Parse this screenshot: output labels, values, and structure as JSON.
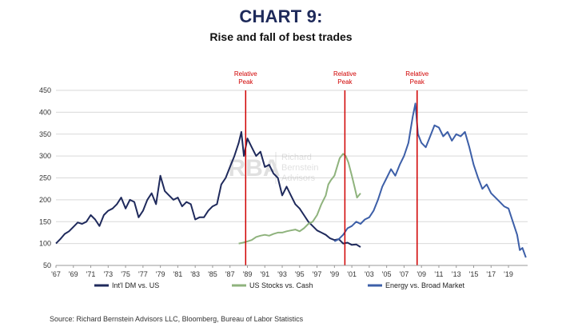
{
  "header": {
    "title": "CHART 9:",
    "subtitle": "Rise and fall of best trades"
  },
  "source": "Source: Richard Bernstein Advisors LLC, Bloomberg, Bureau of Labor Statistics",
  "watermark": {
    "line1": "Richard",
    "line2": "Bernstein",
    "line3": "Advisors",
    "logo": "RBA"
  },
  "chart_data": {
    "type": "line",
    "title": "Rise and fall of best trades",
    "xlabel": "",
    "ylabel": "",
    "xlim": [
      1967,
      2021.2
    ],
    "ylim": [
      50,
      450
    ],
    "yticks": [
      50,
      100,
      150,
      200,
      250,
      300,
      350,
      400,
      450
    ],
    "xtick_labels": [
      "'67",
      "'69",
      "'71",
      "'73",
      "'75",
      "'77",
      "'79",
      "'81",
      "'83",
      "'85",
      "'87",
      "'89",
      "'91",
      "'93",
      "'95",
      "'97",
      "'99",
      "'01",
      "'03",
      "'05",
      "'07",
      "'09",
      "'11",
      "'13",
      "'15",
      "'17",
      "'19"
    ],
    "grid": "horizontal",
    "legend_position": "bottom",
    "colors": {
      "intl": "#1f2a5c",
      "stocks": "#8fb37d",
      "energy": "#3d5fa8",
      "peak": "#d00000",
      "grid": "#d9d9d9"
    },
    "series": [
      {
        "name": "Int'l DM vs. US",
        "color": "#1f2a5c",
        "x": [
          1967,
          1967.5,
          1968,
          1968.5,
          1969,
          1969.5,
          1970,
          1970.5,
          1971,
          1971.5,
          1972,
          1972.5,
          1973,
          1973.5,
          1974,
          1974.5,
          1975,
          1975.5,
          1976,
          1976.5,
          1977,
          1977.5,
          1978,
          1978.5,
          1979,
          1979.5,
          1980,
          1980.5,
          1981,
          1981.5,
          1982,
          1982.5,
          1983,
          1983.5,
          1984,
          1984.5,
          1985,
          1985.5,
          1986,
          1986.5,
          1987,
          1987.5,
          1988,
          1988.3,
          1988.6,
          1989,
          1989.5,
          1990,
          1990.5,
          1991,
          1991.5,
          1992,
          1992.5,
          1993,
          1993.5,
          1994,
          1994.5,
          1995,
          1995.5,
          1996,
          1996.5,
          1997,
          1997.5,
          1998,
          1998.5,
          1999,
          1999.5,
          2000,
          2000.5,
          2001,
          2001.5,
          2002
        ],
        "values": [
          100,
          110,
          122,
          128,
          138,
          148,
          145,
          150,
          165,
          155,
          140,
          165,
          175,
          180,
          190,
          205,
          180,
          200,
          195,
          160,
          175,
          200,
          215,
          190,
          255,
          220,
          210,
          200,
          205,
          185,
          195,
          190,
          155,
          160,
          160,
          175,
          185,
          190,
          235,
          250,
          275,
          300,
          330,
          355,
          300,
          340,
          320,
          300,
          310,
          275,
          280,
          260,
          250,
          210,
          230,
          210,
          190,
          180,
          165,
          150,
          140,
          130,
          125,
          120,
          112,
          108,
          110,
          100,
          102,
          97,
          98,
          92
        ]
      },
      {
        "name": "US Stocks vs. Cash",
        "color": "#8fb37d",
        "x": [
          1988,
          1988.5,
          1989,
          1989.5,
          1990,
          1990.5,
          1991,
          1991.5,
          1992,
          1992.5,
          1993,
          1993.5,
          1994,
          1994.5,
          1995,
          1995.5,
          1996,
          1996.5,
          1997,
          1997.5,
          1998,
          1998.3,
          1998.6,
          1999,
          1999.3,
          1999.6,
          2000,
          2000.3,
          2000.6,
          2001,
          2001.3,
          2001.6,
          2002
        ],
        "values": [
          100,
          102,
          105,
          108,
          115,
          118,
          120,
          118,
          122,
          125,
          125,
          128,
          130,
          132,
          128,
          135,
          145,
          150,
          165,
          190,
          210,
          235,
          245,
          255,
          275,
          295,
          305,
          300,
          285,
          255,
          230,
          205,
          215
        ]
      },
      {
        "name": "Energy vs. Broad Market",
        "color": "#3d5fa8",
        "x": [
          1999,
          1999.5,
          2000,
          2000.5,
          2001,
          2001.5,
          2002,
          2002.5,
          2003,
          2003.5,
          2004,
          2004.5,
          2005,
          2005.5,
          2006,
          2006.5,
          2007,
          2007.5,
          2008,
          2008.3,
          2008.6,
          2009,
          2009.5,
          2010,
          2010.5,
          2011,
          2011.5,
          2012,
          2012.5,
          2013,
          2013.5,
          2014,
          2014.5,
          2015,
          2015.5,
          2016,
          2016.5,
          2017,
          2017.5,
          2018,
          2018.5,
          2019,
          2019.5,
          2020,
          2020.3,
          2020.6,
          2021
        ],
        "values": [
          105,
          110,
          120,
          135,
          140,
          150,
          145,
          155,
          160,
          175,
          200,
          230,
          250,
          270,
          255,
          280,
          300,
          330,
          390,
          420,
          350,
          330,
          320,
          345,
          370,
          365,
          345,
          355,
          335,
          350,
          345,
          355,
          320,
          280,
          250,
          225,
          235,
          215,
          205,
          195,
          185,
          180,
          150,
          120,
          85,
          90,
          68
        ]
      }
    ],
    "annotations": [
      {
        "x": 1988.8,
        "text": [
          "Relative",
          "Peak"
        ]
      },
      {
        "x": 2000.2,
        "text": [
          "Relative",
          "Peak"
        ]
      },
      {
        "x": 2008.5,
        "text": [
          "Relative",
          "Peak"
        ]
      }
    ]
  }
}
